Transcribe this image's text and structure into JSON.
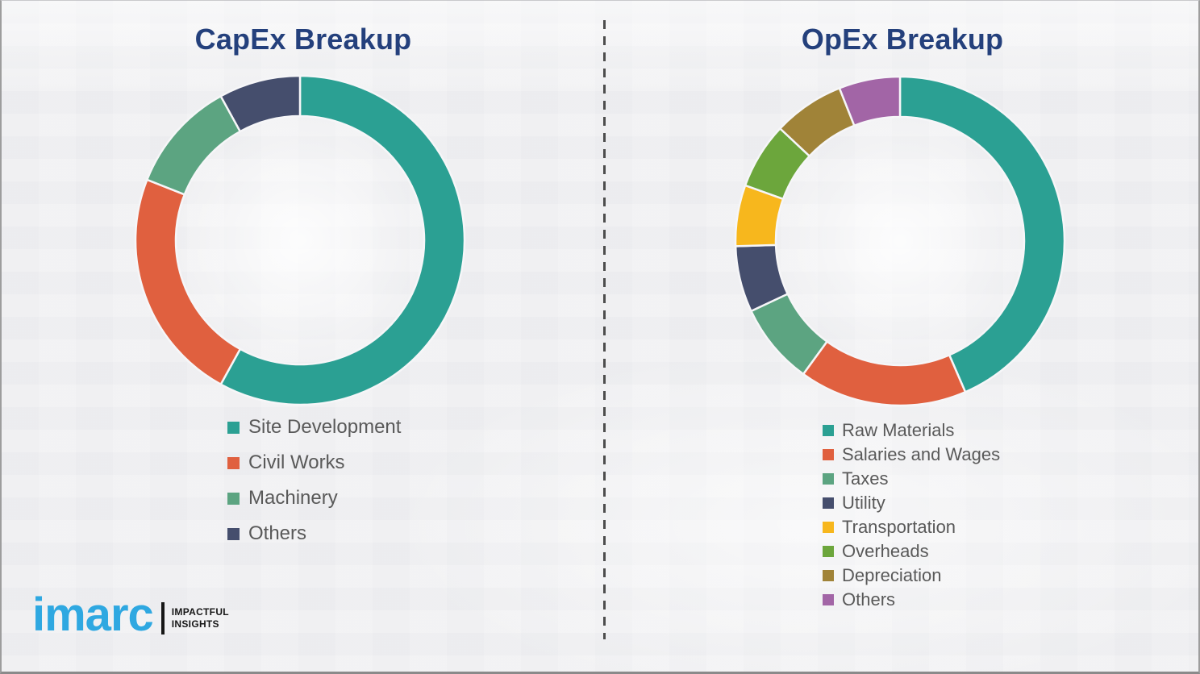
{
  "page": {
    "background_color": "#f1f1f3",
    "border_color": "#9d9d9d",
    "divider": {
      "orientation": "vertical",
      "style": "dashed",
      "color": "#4d4d4d"
    }
  },
  "chart_data": [
    {
      "type": "pie",
      "subtype": "donut",
      "title": "CapEx Breakup",
      "title_color": "#24407c",
      "categories": [
        "Site Development",
        "Civil Works",
        "Machinery",
        "Others"
      ],
      "values": [
        58,
        23,
        11,
        8
      ],
      "unit": "%",
      "colors": [
        "#2ba093",
        "#e0603f",
        "#5ca481",
        "#454e6d"
      ],
      "start_angle_deg": 0,
      "direction": "clockwise",
      "legend_position": "bottom-left",
      "legend_text_color": "#595959",
      "data_labels": "none"
    },
    {
      "type": "pie",
      "subtype": "donut",
      "title": "OpEx Breakup",
      "title_color": "#24407c",
      "categories": [
        "Raw Materials",
        "Salaries and Wages",
        "Taxes",
        "Utility",
        "Transportation",
        "Overheads",
        "Depreciation",
        "Others"
      ],
      "values": [
        43.5,
        16.5,
        8,
        6.5,
        6,
        6.5,
        7,
        6
      ],
      "unit": "%",
      "colors": [
        "#2ba093",
        "#e0603f",
        "#5ca481",
        "#454e6d",
        "#f7b71d",
        "#6ca63c",
        "#a08338",
        "#a265a6"
      ],
      "start_angle_deg": 0,
      "direction": "clockwise",
      "legend_position": "bottom-left",
      "legend_text_color": "#595959",
      "data_labels": "none"
    }
  ],
  "logo": {
    "brand": "imarc",
    "brand_color": "#2fa8e1",
    "tagline_line1": "IMPACTFUL",
    "tagline_line2": "INSIGHTS",
    "tagline_color": "#161616",
    "bar_color": "#161616"
  }
}
